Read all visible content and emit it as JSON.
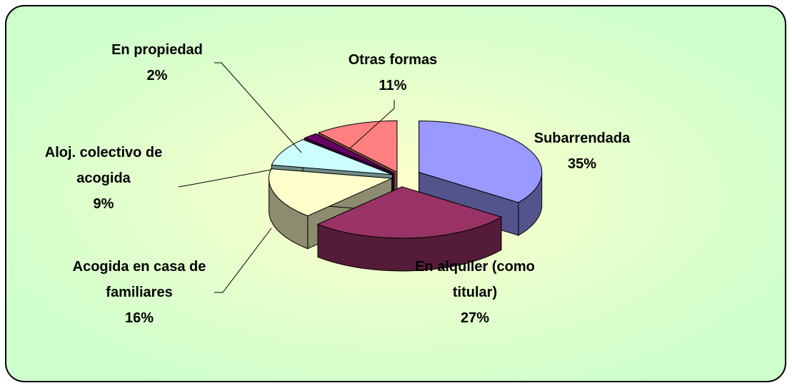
{
  "chart_data": {
    "type": "pie3d",
    "categories": [
      "Subarrendada",
      "En alquiler (como titular)",
      "Acogida en casa de familiares",
      "Aloj. colectivo de acogida",
      "En propiedad",
      "Otras formas"
    ],
    "values": [
      35,
      27,
      16,
      9,
      2,
      11
    ],
    "value_labels": [
      "35%",
      "27%",
      "16%",
      "9%",
      "2%",
      "11%"
    ],
    "colors": [
      "#9999ff",
      "#993366",
      "#ffffcc",
      "#ccffff",
      "#660066",
      "#ff8080"
    ]
  }
}
